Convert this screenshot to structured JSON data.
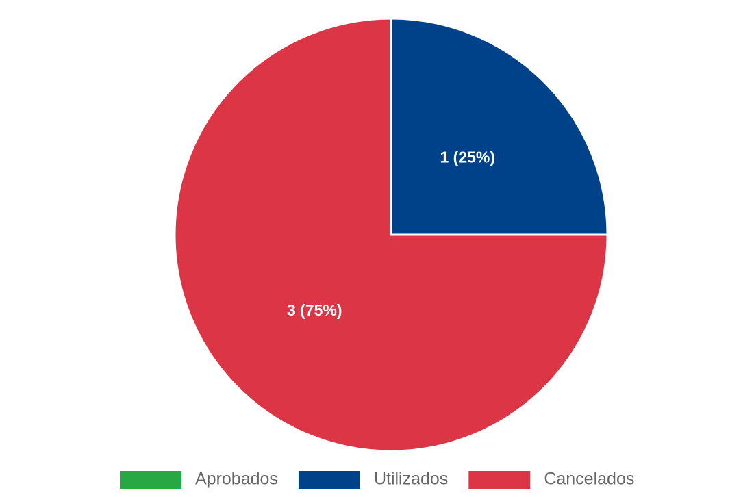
{
  "chart_data": {
    "type": "pie",
    "categories": [
      "Aprobados",
      "Utilizados",
      "Cancelados"
    ],
    "values": [
      0,
      1,
      3
    ],
    "value_labels": [
      null,
      "1 (25%)",
      "3 (75%)"
    ],
    "colors": [
      "#28a745",
      "#00428a",
      "#dc3545"
    ],
    "legend": "bottom"
  }
}
